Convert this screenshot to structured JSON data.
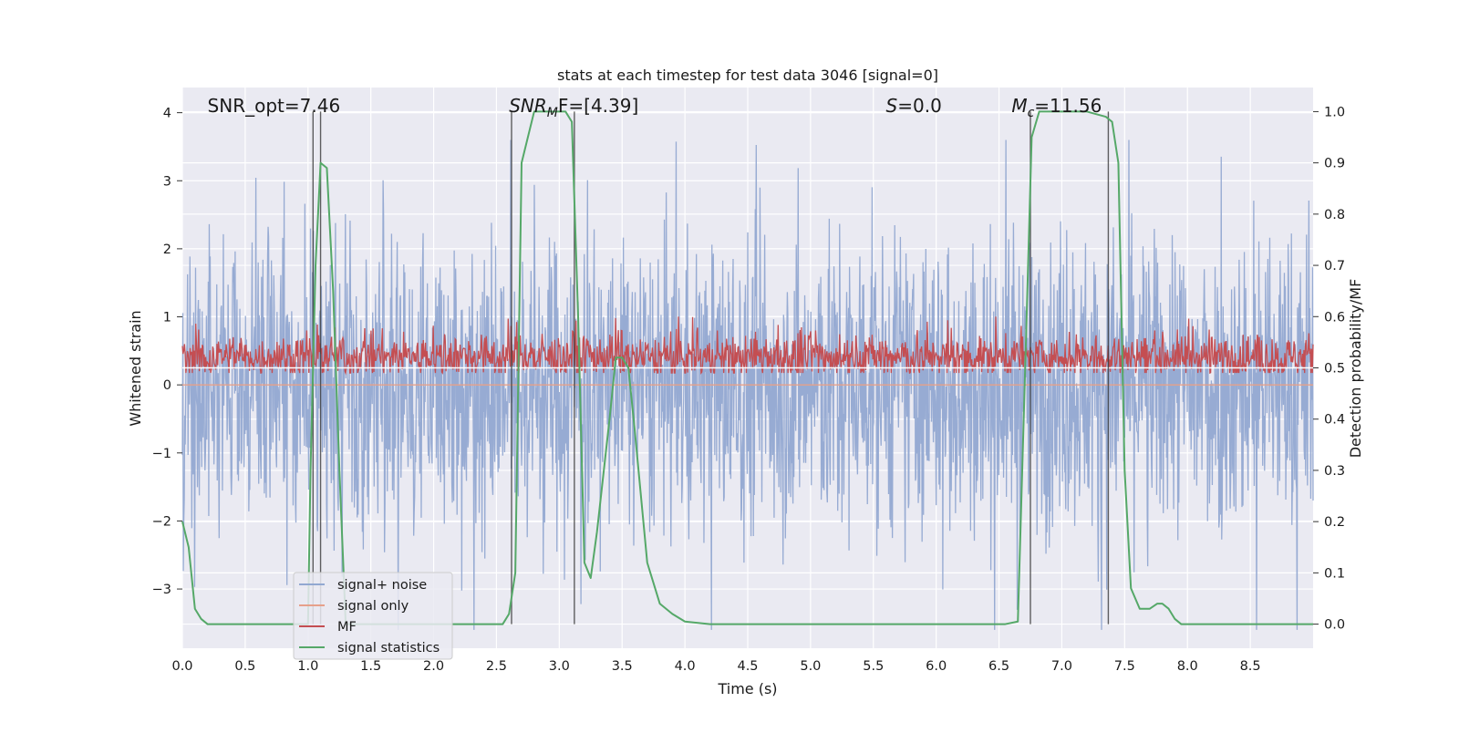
{
  "chart_data": {
    "type": "line",
    "title": "stats at each timestep for test data 3046 [signal=0]",
    "xlabel": "Time (s)",
    "ylabel": "Whitened strain",
    "y2label": "Detection probability/MF",
    "xlim": [
      0.0,
      9.0
    ],
    "ylim": [
      -3.87,
      4.37
    ],
    "y2lim": [
      -0.047,
      1.047
    ],
    "xticks": [
      "0.0",
      "0.5",
      "1.0",
      "1.5",
      "2.0",
      "2.5",
      "3.0",
      "3.5",
      "4.0",
      "4.5",
      "5.0",
      "5.5",
      "6.0",
      "6.5",
      "7.0",
      "7.5",
      "8.0",
      "8.5"
    ],
    "yticks": [
      "−3",
      "−2",
      "−1",
      "0",
      "1",
      "2",
      "3",
      "4"
    ],
    "y2ticks": [
      "0.0",
      "0.1",
      "0.2",
      "0.3",
      "0.4",
      "0.5",
      "0.6",
      "0.7",
      "0.8",
      "0.9",
      "1.0"
    ],
    "grid": true,
    "legend_position": "lower-left",
    "annotations": [
      {
        "prefix": "SNR_opt=7.46",
        "sub": "",
        "suffix": "",
        "italic": false
      },
      {
        "prefix": "SNR",
        "sub": "M",
        "suffix": "F=[4.39]",
        "italic": true
      },
      {
        "prefix": "S",
        "sub": "",
        "suffix": "=0.0",
        "italic": true
      },
      {
        "prefix": "M",
        "sub": "c",
        "suffix": "=11.56",
        "italic": true
      }
    ],
    "series": [
      {
        "name": "signal+ noise",
        "color": "#92a8d1",
        "axis": "left",
        "noise_amplitude": [
          -3.6,
          3.6
        ]
      },
      {
        "name": "signal only",
        "color": "#e6a08a",
        "axis": "left",
        "values_const": 0.0
      },
      {
        "name": "MF",
        "color": "#c44e52",
        "axis": "left",
        "band": [
          0.05,
          0.95
        ]
      },
      {
        "name": "signal statistics",
        "color": "#55a868",
        "axis": "right",
        "x": [
          0.0,
          0.05,
          0.1,
          0.15,
          0.2,
          0.3,
          0.5,
          1.0,
          1.02,
          1.06,
          1.1,
          1.15,
          1.2,
          1.25,
          1.3,
          2.4,
          2.55,
          2.6,
          2.65,
          2.7,
          2.75,
          2.8,
          2.9,
          3.0,
          3.05,
          3.1,
          3.15,
          3.2,
          3.25,
          3.3,
          3.4,
          3.45,
          3.5,
          3.55,
          3.6,
          3.7,
          3.8,
          3.9,
          4.0,
          4.2,
          4.5,
          6.55,
          6.65,
          6.72,
          6.76,
          6.82,
          6.9,
          7.0,
          7.2,
          7.35,
          7.4,
          7.45,
          7.5,
          7.55,
          7.62,
          7.7,
          7.76,
          7.8,
          7.85,
          7.9,
          7.95,
          8.0,
          8.2,
          9.0
        ],
        "values": [
          0.2,
          0.15,
          0.03,
          0.01,
          0.0,
          0.0,
          0.0,
          0.0,
          0.3,
          0.7,
          0.9,
          0.89,
          0.65,
          0.3,
          0.0,
          0.0,
          0.0,
          0.02,
          0.1,
          0.9,
          0.95,
          1.0,
          1.0,
          1.0,
          1.0,
          0.98,
          0.6,
          0.12,
          0.09,
          0.18,
          0.4,
          0.52,
          0.52,
          0.5,
          0.38,
          0.12,
          0.04,
          0.02,
          0.005,
          0.0,
          0.0,
          0.0,
          0.005,
          0.6,
          0.95,
          1.0,
          1.0,
          1.0,
          1.0,
          0.99,
          0.98,
          0.9,
          0.3,
          0.07,
          0.03,
          0.03,
          0.04,
          0.04,
          0.03,
          0.01,
          0.0,
          0.0,
          0.0,
          0.0
        ]
      }
    ],
    "vertical_lines_x": [
      1.04,
      1.1,
      2.62,
      3.12,
      6.75,
      7.37
    ]
  },
  "legend": {
    "items": [
      {
        "label": "signal+ noise",
        "color": "#92a8d1"
      },
      {
        "label": "signal only",
        "color": "#e6a08a"
      },
      {
        "label": "MF",
        "color": "#c44e52"
      },
      {
        "label": "signal statistics",
        "color": "#55a868"
      }
    ]
  },
  "colors": {
    "plot_background": "#eaeaf2",
    "grid": "#ffffff",
    "vline": "#3a3a3a"
  }
}
